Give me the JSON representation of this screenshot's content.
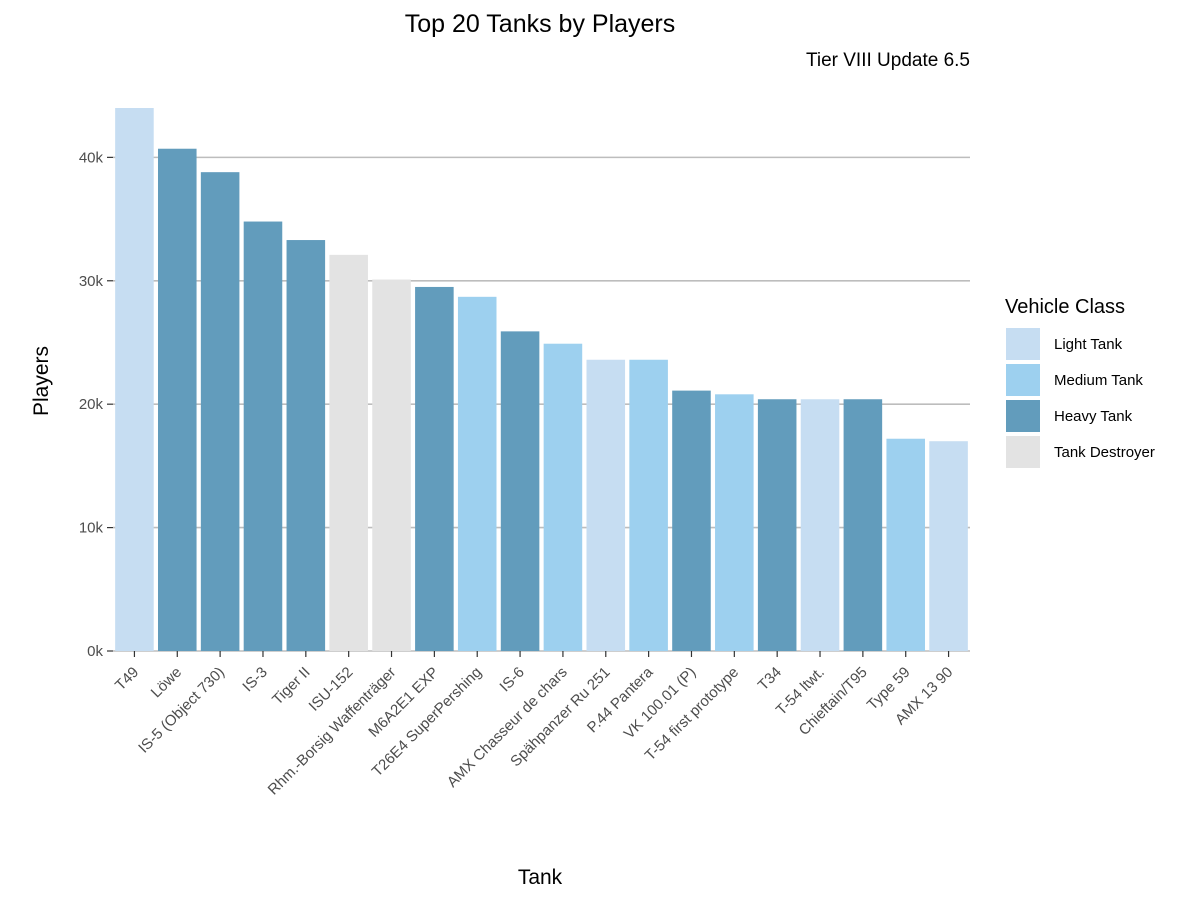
{
  "chart_data": {
    "type": "bar",
    "title": "Top 20 Tanks by Players",
    "subtitle": "Tier VIII Update 6.5",
    "xlabel": "Tank",
    "ylabel": "Players",
    "ylim": [
      0,
      44000
    ],
    "yticks": [
      0,
      10000,
      20000,
      30000,
      40000
    ],
    "ytick_labels": [
      "0k",
      "10k",
      "20k",
      "30k",
      "40k"
    ],
    "grid": "horizontal major gridlines",
    "legend": {
      "title": "Vehicle Class",
      "placement": "right",
      "entries": [
        {
          "label": "Light Tank",
          "color": "#c6ddf2"
        },
        {
          "label": "Medium Tank",
          "color": "#9dd0ef"
        },
        {
          "label": "Heavy Tank",
          "color": "#629cbc"
        },
        {
          "label": "Tank Destroyer",
          "color": "#e3e3e3"
        }
      ]
    },
    "categories": [
      "T49",
      "Löwe",
      "IS-5 (Object 730)",
      "IS-3",
      "Tiger II",
      "ISU-152",
      "Rhm.-Borsig Waffenträger",
      "M6A2E1 EXP",
      "T26E4 SuperPershing",
      "IS-6",
      "AMX Chasseur de chars",
      "Spähpanzer Ru 251",
      "P.44 Pantera",
      "VK 100.01 (P)",
      "T-54 first prototype",
      "T34",
      "T-54 ltwt.",
      "Chieftain/T95",
      "Type 59",
      "AMX 13 90"
    ],
    "values": [
      44000,
      40700,
      38800,
      34800,
      33300,
      32100,
      30100,
      29500,
      28700,
      25900,
      24900,
      23600,
      23600,
      21100,
      20800,
      20400,
      20400,
      20400,
      17200,
      17000
    ],
    "classes": [
      "Light Tank",
      "Heavy Tank",
      "Heavy Tank",
      "Heavy Tank",
      "Heavy Tank",
      "Tank Destroyer",
      "Tank Destroyer",
      "Heavy Tank",
      "Medium Tank",
      "Heavy Tank",
      "Medium Tank",
      "Light Tank",
      "Medium Tank",
      "Heavy Tank",
      "Medium Tank",
      "Heavy Tank",
      "Light Tank",
      "Heavy Tank",
      "Medium Tank",
      "Light Tank"
    ]
  }
}
